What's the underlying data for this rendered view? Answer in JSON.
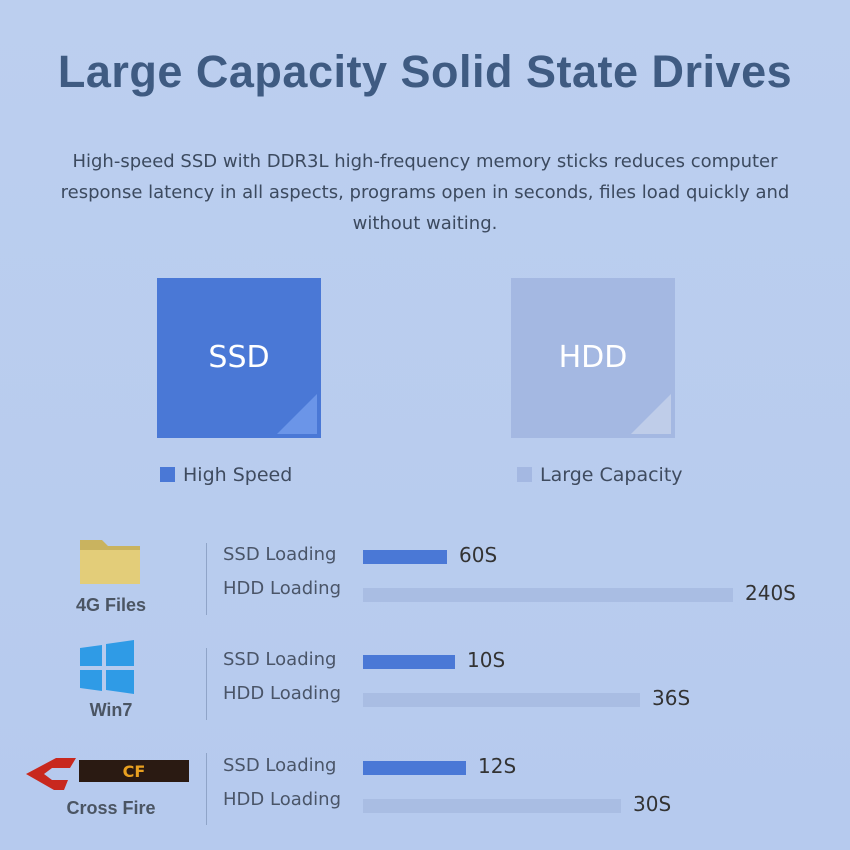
{
  "header": {
    "title": "Large Capacity Solid State Drives",
    "description": "High-speed SSD with DDR3L high-frequency memory sticks reduces computer response latency in all aspects, programs open in seconds, files load quickly and without waiting."
  },
  "cards": [
    {
      "label": "SSD",
      "legend": "High Speed"
    },
    {
      "label": "HDD",
      "legend": "Large Capacity"
    }
  ],
  "comparisons": [
    {
      "label": "4G Files",
      "rows": [
        {
          "name": "SSD Loading",
          "time": "60S"
        },
        {
          "name": "HDD Loading",
          "time": "240S"
        }
      ]
    },
    {
      "label": "Win7",
      "rows": [
        {
          "name": "SSD Loading",
          "time": "10S"
        },
        {
          "name": "HDD Loading",
          "time": "36S"
        }
      ]
    },
    {
      "label": "Cross Fire",
      "rows": [
        {
          "name": "SSD Loading",
          "time": "12S"
        },
        {
          "name": "HDD Loading",
          "time": "30S"
        }
      ]
    }
  ]
}
